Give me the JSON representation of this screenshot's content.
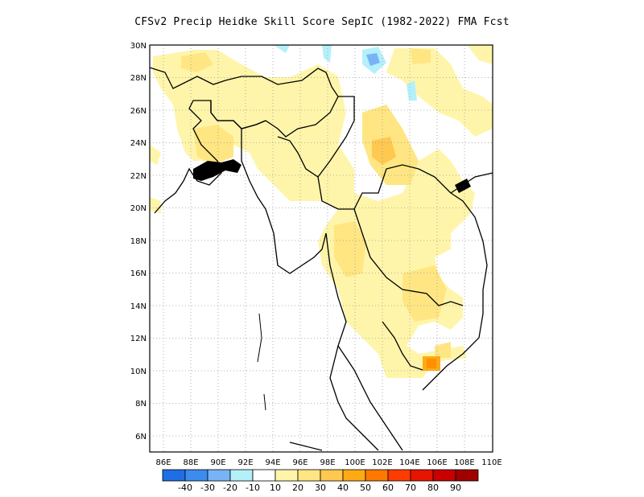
{
  "title": "CFSv2 Precip Heidke Skill Score SepIC (1982-2022) FMA Fcst",
  "map": {
    "lon_range": [
      85,
      110
    ],
    "lat_range": [
      5,
      30
    ],
    "grid": true,
    "lon_ticks": [
      "86E",
      "88E",
      "90E",
      "92E",
      "94E",
      "96E",
      "98E",
      "100E",
      "102E",
      "104E",
      "106E",
      "108E",
      "110E"
    ],
    "lat_ticks": [
      "30N",
      "28N",
      "26N",
      "24N",
      "22N",
      "20N",
      "18N",
      "16N",
      "14N",
      "12N",
      "10N",
      "8N",
      "6N"
    ],
    "colorbar": {
      "labels": [
        "-40",
        "-30",
        "-20",
        "-10",
        "10",
        "20",
        "30",
        "40",
        "50",
        "60",
        "70",
        "80",
        "90"
      ],
      "colors": [
        "#1e6ee6",
        "#3c8cf0",
        "#78b4f5",
        "#b4f0fa",
        "#ffffff",
        "#fff5aa",
        "#ffe682",
        "#ffc850",
        "#ffaa14",
        "#ff7800",
        "#ff3c00",
        "#e61400",
        "#c80000",
        "#a00000"
      ]
    }
  }
}
